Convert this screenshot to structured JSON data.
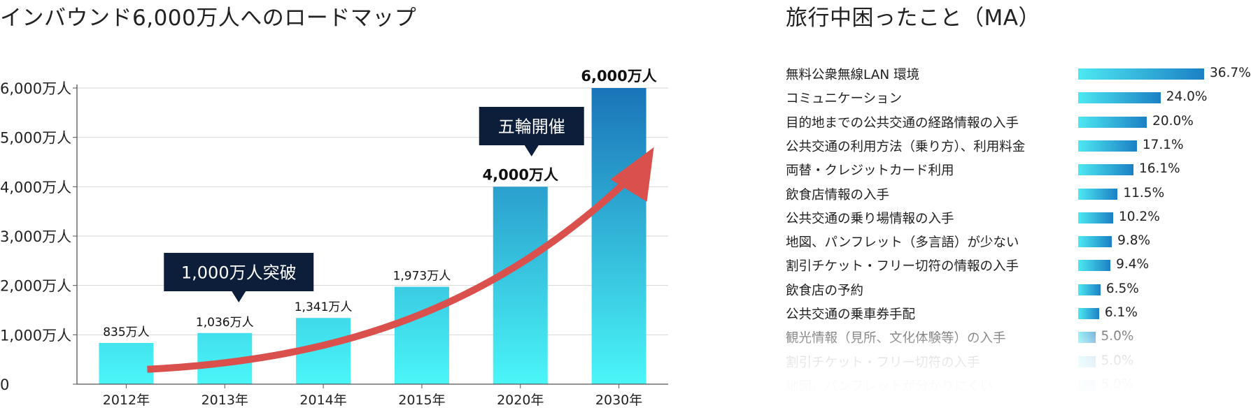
{
  "left_title": "インバウンド6,000万人へのロードマップ",
  "right_title": "旅行中困ったこと（MA）",
  "colors": {
    "bar_top": "#4af6f8",
    "bar_bottom_dark": "#1a74b8",
    "arrow": "#d9504d",
    "callout": "#0d1e3b",
    "hbar_start": "#4de8f2",
    "hbar_end": "#1b80c4"
  },
  "chart_data": [
    {
      "type": "bar",
      "title": "インバウンド6,000万人へのロードマップ",
      "categories": [
        "2012年",
        "2013年",
        "2014年",
        "2015年",
        "2020年",
        "2030年"
      ],
      "values": [
        835,
        1036,
        1341,
        1973,
        4000,
        6000
      ],
      "value_labels": [
        "835万人",
        "1,036万人",
        "1,341万人",
        "1,973万人",
        "4,000万人",
        "6,000万人"
      ],
      "y_ticks": [
        "0",
        "1,000万人",
        "2,000万人",
        "3,000万人",
        "4,000万人",
        "5,000万人",
        "6,000万人"
      ],
      "y_tick_values": [
        0,
        1000,
        2000,
        3000,
        4000,
        5000,
        6000
      ],
      "ylim": [
        0,
        6000
      ],
      "grid": true,
      "annotations": [
        "1,000万人突破",
        "五輪開催"
      ]
    },
    {
      "type": "bar",
      "orientation": "horizontal",
      "title": "旅行中困ったこと（MA）",
      "categories": [
        "無料公衆無線LAN 環境",
        "コミュニケーション",
        "目的地までの公共交通の経路情報の入手",
        "公共交通の利用方法（乗り方）、利用料金",
        "両替・クレジットカード利用",
        "飲食店情報の入手",
        "公共交通の乗り場情報の入手",
        "地図、パンフレット（多言語）が少ない",
        "割引チケット・フリー切符の情報の入手",
        "飲食店の予約",
        "公共交通の乗車券手配",
        "観光情報（見所、文化体験等）の入手",
        "割引チケット・フリー切符の入手",
        "地図、パンフレットが分かりにくい"
      ],
      "values": [
        36.7,
        24.0,
        20.0,
        17.1,
        16.1,
        11.5,
        10.2,
        9.8,
        9.4,
        6.5,
        6.1,
        5.0,
        5.0,
        5.0
      ],
      "value_labels": [
        "36.7%",
        "24.0%",
        "20.0%",
        "17.1%",
        "16.1%",
        "11.5%",
        "10.2%",
        "9.8%",
        "9.4%",
        "6.5%",
        "6.1%",
        "5.0%",
        "5.0%",
        "5.0%"
      ],
      "xlim": [
        0,
        36.7
      ]
    }
  ]
}
